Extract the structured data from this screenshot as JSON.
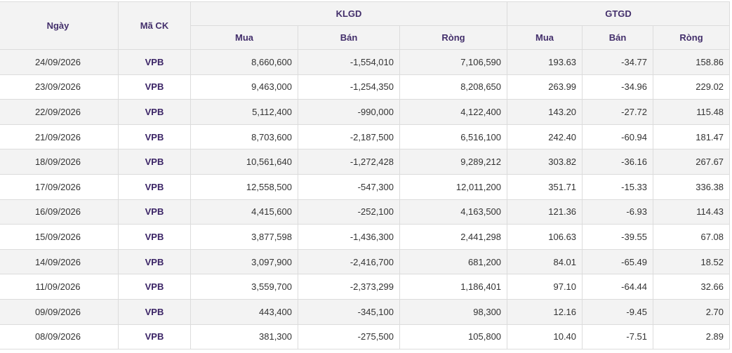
{
  "table": {
    "headers": {
      "date": "Ngày",
      "code": "Mã CK",
      "group_vol": "KLGD",
      "group_val": "GTGD",
      "buy": "Mua",
      "sell": "Bán",
      "net": "Ròng"
    },
    "rows": [
      [
        "24/09/2026",
        "VPB",
        "8,660,600",
        "-1,554,010",
        "7,106,590",
        "193.63",
        "-34.77",
        "158.86"
      ],
      [
        "23/09/2026",
        "VPB",
        "9,463,000",
        "-1,254,350",
        "8,208,650",
        "263.99",
        "-34.96",
        "229.02"
      ],
      [
        "22/09/2026",
        "VPB",
        "5,112,400",
        "-990,000",
        "4,122,400",
        "143.20",
        "-27.72",
        "115.48"
      ],
      [
        "21/09/2026",
        "VPB",
        "8,703,600",
        "-2,187,500",
        "6,516,100",
        "242.40",
        "-60.94",
        "181.47"
      ],
      [
        "18/09/2026",
        "VPB",
        "10,561,640",
        "-1,272,428",
        "9,289,212",
        "303.82",
        "-36.16",
        "267.67"
      ],
      [
        "17/09/2026",
        "VPB",
        "12,558,500",
        "-547,300",
        "12,011,200",
        "351.71",
        "-15.33",
        "336.38"
      ],
      [
        "16/09/2026",
        "VPB",
        "4,415,600",
        "-252,100",
        "4,163,500",
        "121.36",
        "-6.93",
        "114.43"
      ],
      [
        "15/09/2026",
        "VPB",
        "3,877,598",
        "-1,436,300",
        "2,441,298",
        "106.63",
        "-39.55",
        "67.08"
      ],
      [
        "14/09/2026",
        "VPB",
        "3,097,900",
        "-2,416,700",
        "681,200",
        "84.01",
        "-65.49",
        "18.52"
      ],
      [
        "11/09/2026",
        "VPB",
        "3,559,700",
        "-2,373,299",
        "1,186,401",
        "97.10",
        "-64.44",
        "32.66"
      ],
      [
        "09/09/2026",
        "VPB",
        "443,400",
        "-345,100",
        "98,300",
        "12.16",
        "-9.45",
        "2.70"
      ],
      [
        "08/09/2026",
        "VPB",
        "381,300",
        "-275,500",
        "105,800",
        "10.40",
        "-7.51",
        "2.89"
      ]
    ]
  }
}
